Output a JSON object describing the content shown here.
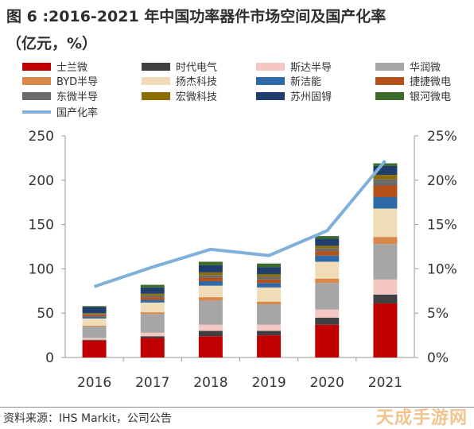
{
  "title": "图 6 :2016-2021 年中国功率器件市场空间及国产化率",
  "subtitle": "（亿元，%）",
  "source": "资料来源：IHS Markit，公司公告",
  "watermark": "天成手游网",
  "chart_data": {
    "type": "bar",
    "stacked": true,
    "categories": [
      "2016",
      "2017",
      "2018",
      "2019",
      "2020",
      "2021"
    ],
    "ylim_left": [
      0,
      250
    ],
    "yticks_left": [
      "0",
      "50",
      "100",
      "150",
      "200",
      "250"
    ],
    "ylim_right": [
      0,
      25
    ],
    "yticks_right": [
      "0%",
      "5%",
      "10%",
      "15%",
      "20%",
      "25%"
    ],
    "grid": false,
    "legend_position": "top",
    "series": [
      {
        "name": "士兰微",
        "color": "#c00000",
        "values": [
          19,
          22,
          24,
          25,
          37,
          61
        ]
      },
      {
        "name": "时代电气",
        "color": "#404040",
        "values": [
          1,
          2,
          6,
          5,
          8,
          10
        ]
      },
      {
        "name": "斯达半导",
        "color": "#f4c7c3",
        "values": [
          2,
          4,
          7,
          7,
          9,
          17
        ]
      },
      {
        "name": "华润微",
        "color": "#a6a6a6",
        "values": [
          13,
          21,
          27,
          23,
          30,
          40
        ]
      },
      {
        "name": "BYD半导",
        "color": "#d8884a",
        "values": [
          1,
          2,
          4,
          3,
          5,
          8
        ]
      },
      {
        "name": "扬杰科技",
        "color": "#f0ddb8",
        "values": [
          8,
          11,
          13,
          16,
          19,
          32
        ]
      },
      {
        "name": "新洁能",
        "color": "#2e6aa8",
        "values": [
          2,
          3,
          5,
          5,
          7,
          13
        ]
      },
      {
        "name": "捷捷微电",
        "color": "#b5501a",
        "values": [
          2,
          3,
          4,
          4,
          5,
          13
        ]
      },
      {
        "name": "东微半导",
        "color": "#6b6b6b",
        "values": [
          1,
          2,
          3,
          3,
          3,
          7
        ]
      },
      {
        "name": "宏微科技",
        "color": "#8c6d00",
        "values": [
          1,
          2,
          3,
          3,
          3,
          5
        ]
      },
      {
        "name": "苏州固锝",
        "color": "#1f3e6e",
        "values": [
          7,
          7,
          8,
          8,
          8,
          10
        ]
      },
      {
        "name": "银河微电",
        "color": "#3d6b2a",
        "values": [
          1,
          3,
          4,
          4,
          3,
          3
        ]
      }
    ],
    "line": {
      "name": "国产化率",
      "axis": "right",
      "color": "#7fb0da",
      "values": [
        8.0,
        10.2,
        12.2,
        11.5,
        14.3,
        22.2
      ]
    }
  }
}
